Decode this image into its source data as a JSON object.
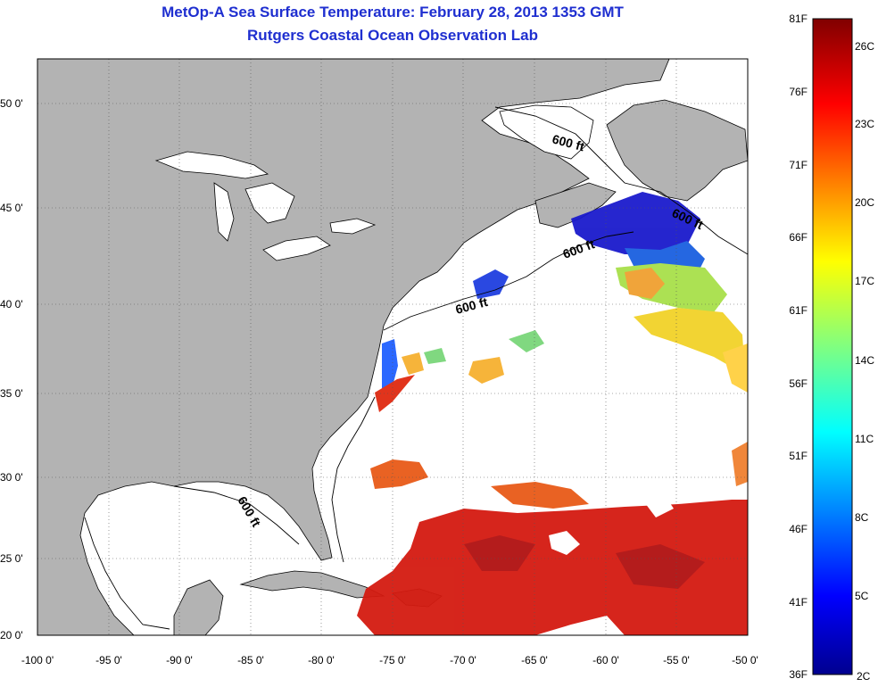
{
  "title": {
    "line1": "MetOp-A Sea Surface Temperature:  February 28, 2013 1353 GMT",
    "line2": "Rutgers Coastal Ocean Observation Lab"
  },
  "map": {
    "lon_ticks": [
      "-100 0'",
      "-95 0'",
      "-90 0'",
      "-85 0'",
      "-80 0'",
      "-75 0'",
      "-70 0'",
      "-65 0'",
      "-60 0'",
      "-55 0'",
      "-50 0'"
    ],
    "lat_ticks": [
      "50 0'",
      "45 0'",
      "40 0'",
      "35 0'",
      "30 0'",
      "25 0'",
      "20 0'"
    ],
    "depth_labels": [
      "600 ft",
      "600 ft",
      "600 ft",
      "600 ft",
      "600 ft"
    ],
    "land_color": "#b3b3b3",
    "ocean_color": "#ffffff"
  },
  "colorbar": {
    "fahrenheit": [
      "81F",
      "76F",
      "71F",
      "66F",
      "61F",
      "56F",
      "51F",
      "46F",
      "41F",
      "36F"
    ],
    "celsius": [
      "26C",
      "23C",
      "20C",
      "17C",
      "14C",
      "11C",
      "8C",
      "5C",
      "2C"
    ],
    "colors": [
      "#800000",
      "#ff0000",
      "#ff8000",
      "#ffff00",
      "#80ff80",
      "#00ffff",
      "#0080ff",
      "#0000ff",
      "#000080"
    ]
  }
}
